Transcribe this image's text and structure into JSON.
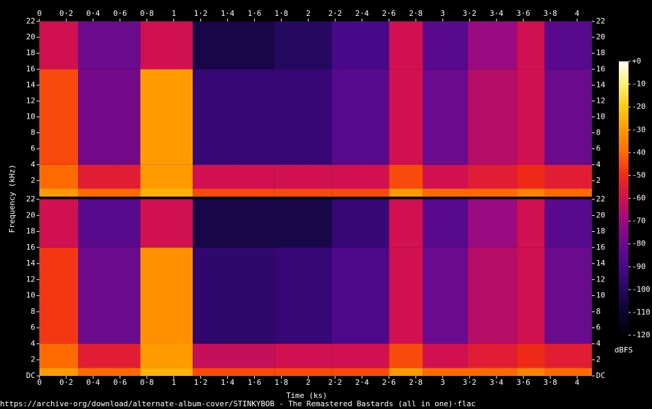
{
  "chart_data": {
    "type": "spectrogram",
    "xlabel": "Time (ks)",
    "ylabel": "Frequency (kHz)",
    "colorbar_label": "dBFS",
    "footer": "https://archive·org/download/alternate-album-cover/STINKYBOB - The Remastered Bastards (all in one)·flac",
    "xlim": [
      0,
      4.11
    ],
    "xticks": [
      0,
      {
        "value": 0.2,
        "label": "0·2"
      },
      {
        "value": 0.4,
        "label": "0·4"
      },
      {
        "value": 0.6,
        "label": "0·6"
      },
      {
        "value": 0.8,
        "label": "0·8"
      },
      1,
      {
        "value": 1.2,
        "label": "1·2"
      },
      {
        "value": 1.4,
        "label": "1·4"
      },
      {
        "value": 1.6,
        "label": "1·6"
      },
      {
        "value": 1.8,
        "label": "1·8"
      },
      2,
      {
        "value": 2.2,
        "label": "2·2"
      },
      {
        "value": 2.4,
        "label": "2·4"
      },
      {
        "value": 2.6,
        "label": "2·6"
      },
      {
        "value": 2.8,
        "label": "2·8"
      },
      3,
      {
        "value": 3.2,
        "label": "3·2"
      },
      {
        "value": 3.4,
        "label": "3·4"
      },
      {
        "value": 3.6,
        "label": "3·6"
      },
      {
        "value": 3.8,
        "label": "3·8"
      },
      4
    ],
    "zlim": [
      -120,
      0
    ],
    "zticks": [
      {
        "value": 0,
        "label": "+0"
      },
      -10,
      -20,
      -30,
      -40,
      -50,
      -60,
      -70,
      -80,
      -90,
      -100,
      -110,
      -120
    ],
    "colormap": [
      "#000000",
      "#0a0530",
      "#250860",
      "#48088a",
      "#6a0a8c",
      "#9a0a80",
      "#d01050",
      "#f02a18",
      "#ff6a00",
      "#ff9a00",
      "#ffcc10",
      "#fff070",
      "#ffffff"
    ],
    "time_edges": [
      0,
      0.288,
      0.751,
      1.141,
      1.748,
      2.175,
      2.601,
      2.853,
      3.188,
      3.553,
      3.758,
      4.11
    ],
    "band_edges": [
      0,
      1,
      4,
      16,
      22
    ],
    "channels": [
      {
        "ylim": [
          0,
          22
        ],
        "yticks": [
          2,
          4,
          6,
          8,
          10,
          12,
          14,
          16,
          18,
          20,
          22
        ],
        "levels": [
          [
            -30,
            -40,
            -45,
            -60
          ],
          [
            -40,
            -55,
            -78,
            -80
          ],
          [
            -25,
            -30,
            -30,
            -60
          ],
          [
            -45,
            -60,
            -95,
            -105
          ],
          [
            -45,
            -60,
            -95,
            -100
          ],
          [
            -45,
            -60,
            -85,
            -90
          ],
          [
            -30,
            -45,
            -60,
            -60
          ],
          [
            -40,
            -60,
            -80,
            -85
          ],
          [
            -40,
            -55,
            -65,
            -70
          ],
          [
            -35,
            -50,
            -60,
            -60
          ],
          [
            -40,
            -55,
            -80,
            -85
          ]
        ]
      },
      {
        "ylim": [
          0,
          22
        ],
        "yticks": [
          {
            "value": 0,
            "label": "DC"
          },
          2,
          4,
          6,
          8,
          10,
          12,
          14,
          16,
          18,
          20,
          22
        ],
        "levels": [
          [
            -30,
            -40,
            -48,
            -60
          ],
          [
            -40,
            -55,
            -80,
            -85
          ],
          [
            -25,
            -30,
            -32,
            -60
          ],
          [
            -45,
            -62,
            -97,
            -105
          ],
          [
            -45,
            -60,
            -95,
            -105
          ],
          [
            -45,
            -60,
            -88,
            -95
          ],
          [
            -30,
            -45,
            -60,
            -60
          ],
          [
            -40,
            -60,
            -80,
            -85
          ],
          [
            -40,
            -55,
            -65,
            -70
          ],
          [
            -35,
            -50,
            -60,
            -60
          ],
          [
            -40,
            -55,
            -80,
            -85
          ]
        ]
      }
    ]
  }
}
